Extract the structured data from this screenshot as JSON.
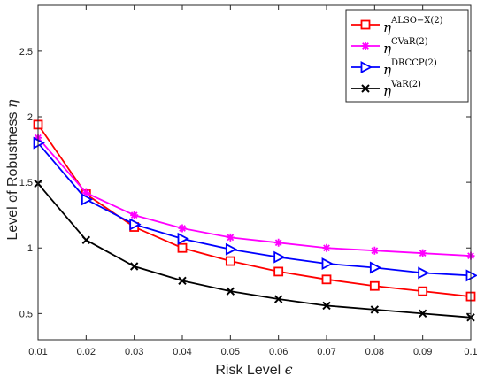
{
  "chart_data": {
    "type": "line",
    "x": [
      0.01,
      0.02,
      0.03,
      0.04,
      0.05,
      0.06,
      0.07,
      0.08,
      0.09,
      0.1
    ],
    "x_tick_labels": [
      "0.01",
      "0.02",
      "0.03",
      "0.04",
      "0.05",
      "0.06",
      "0.07",
      "0.08",
      "0.09",
      "0.1"
    ],
    "y_ticks": [
      0.5,
      1,
      1.5,
      2,
      2.5
    ],
    "y_tick_labels": [
      "0.5",
      "1",
      "1.5",
      "2",
      "2.5"
    ],
    "xlim": [
      0.01,
      0.1
    ],
    "ylim": [
      0.3,
      2.85
    ],
    "xlabel_text": "Risk Level",
    "xlabel_symbol": "ϵ",
    "ylabel_text": "Level of Robustness",
    "ylabel_symbol": "η",
    "grid": false,
    "legend_position": "top-right",
    "series": [
      {
        "name_base": "η",
        "name_sup": "ALSO−X(2)",
        "color": "#ff0000",
        "marker": "square",
        "values": [
          1.94,
          1.41,
          1.16,
          1.0,
          0.9,
          0.82,
          0.76,
          0.71,
          0.67,
          0.63
        ]
      },
      {
        "name_base": "η",
        "name_sup": "CVaR(2)",
        "color": "#ff00ff",
        "marker": "asterisk",
        "values": [
          1.84,
          1.42,
          1.25,
          1.15,
          1.08,
          1.04,
          1.0,
          0.98,
          0.96,
          0.94
        ]
      },
      {
        "name_base": "η",
        "name_sup": "DRCCP(2)",
        "color": "#0000ff",
        "marker": "triangle-right",
        "values": [
          1.8,
          1.37,
          1.18,
          1.07,
          0.99,
          0.93,
          0.88,
          0.85,
          0.81,
          0.79
        ]
      },
      {
        "name_base": "η",
        "name_sup": "VaR(2)",
        "color": "#000000",
        "marker": "x",
        "values": [
          1.49,
          1.06,
          0.86,
          0.75,
          0.67,
          0.61,
          0.56,
          0.53,
          0.5,
          0.47
        ]
      }
    ]
  }
}
